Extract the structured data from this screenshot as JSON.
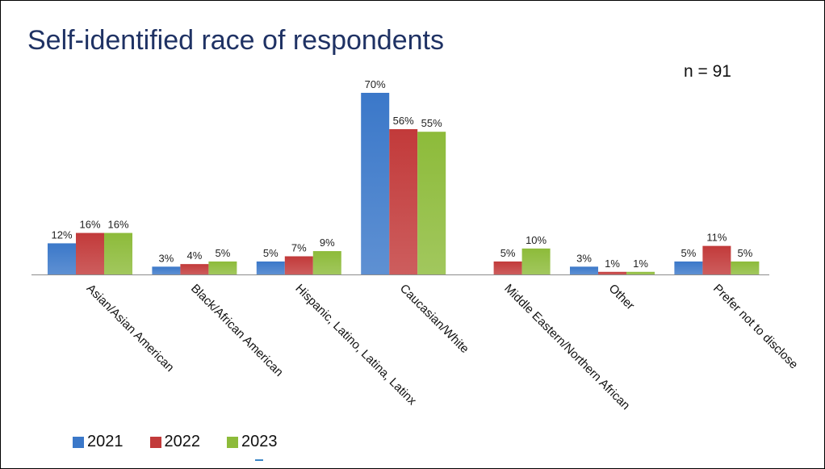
{
  "slide": {
    "title": "Self-identified race of respondents",
    "sample_size": "n = 91"
  },
  "colors": {
    "series_2021": "#3b78c9",
    "series_2022": "#c23a3a",
    "series_2023": "#8dbb3a",
    "axis": "#8c8c8c",
    "title": "#1f3264"
  },
  "chart_data": {
    "type": "bar",
    "categories": [
      "Asian/Asian American",
      "Black/African American",
      "Hispanic, Latino, Latina, Latinx",
      "Caucasian/White",
      "Middle Eastern/Northern African",
      "Other",
      "Prefer not to disclose"
    ],
    "series": [
      {
        "name": "2021",
        "values": [
          12,
          3,
          5,
          70,
          null,
          3,
          5
        ],
        "labels": [
          "12%",
          "3%",
          "5%",
          "70%",
          "",
          "3%",
          "5%"
        ]
      },
      {
        "name": "2022",
        "values": [
          16,
          4,
          7,
          56,
          5,
          1,
          11
        ],
        "labels": [
          "16%",
          "4%",
          "7%",
          "56%",
          "5%",
          "1%",
          "11%"
        ]
      },
      {
        "name": "2023",
        "values": [
          16,
          5,
          9,
          55,
          10,
          1,
          5
        ],
        "labels": [
          "16%",
          "5%",
          "9%",
          "55%",
          "10%",
          "1%",
          "5%"
        ]
      }
    ],
    "ylim": [
      0,
      70
    ],
    "grid": false,
    "legend": "bottom-left",
    "title": "",
    "xlabel": "",
    "ylabel": ""
  }
}
